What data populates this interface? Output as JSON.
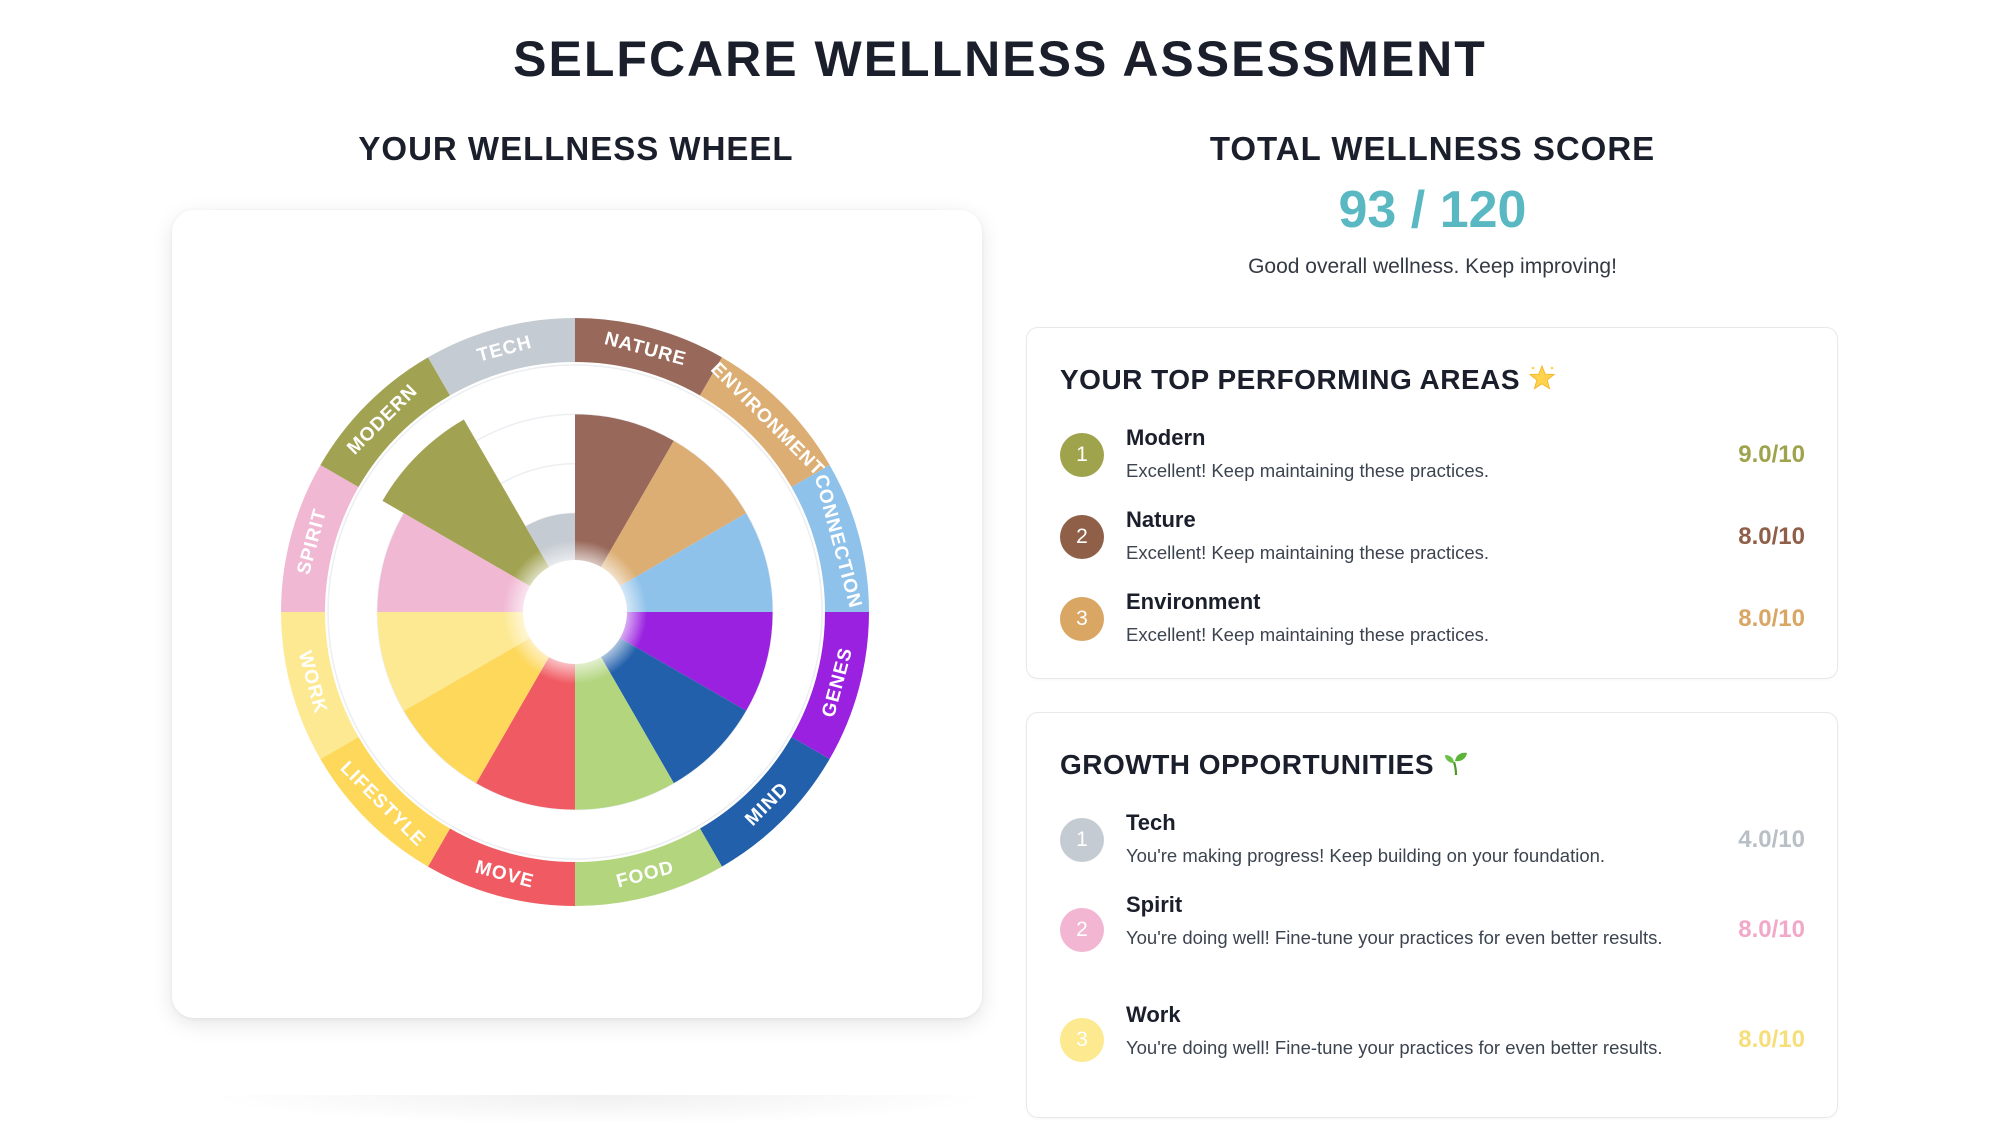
{
  "page": {
    "title": "SELFCARE WELLNESS ASSESSMENT"
  },
  "wheel": {
    "title": "YOUR WELLNESS WHEEL"
  },
  "total": {
    "title": "TOTAL WELLNESS SCORE",
    "score": "93 / 120",
    "message": "Good overall wellness. Keep improving!"
  },
  "top": {
    "heading": "YOUR TOP PERFORMING AREAS",
    "icon": "star-icon",
    "items": [
      {
        "rank": "1",
        "name": "Modern",
        "desc": "Excellent! Keep maintaining these practices.",
        "score": "9.0/10",
        "color": "#9ea34c"
      },
      {
        "rank": "2",
        "name": "Nature",
        "desc": "Excellent! Keep maintaining these practices.",
        "score": "8.0/10",
        "color": "#8f5f48"
      },
      {
        "rank": "3",
        "name": "Environment",
        "desc": "Excellent! Keep maintaining these practices.",
        "score": "8.0/10",
        "color": "#d9a664"
      }
    ]
  },
  "growth": {
    "heading": "GROWTH OPPORTUNITIES",
    "icon": "seedling-icon",
    "items": [
      {
        "rank": "1",
        "name": "Tech",
        "desc": "You're making progress! Keep building on your foundation.",
        "score": "4.0/10",
        "color": "#c5cbd2",
        "textColor": "#b9bfc6"
      },
      {
        "rank": "2",
        "name": "Spirit",
        "desc": "You're doing well! Fine-tune your practices for even better results.",
        "score": "8.0/10",
        "color": "#f2b6d2",
        "textColor": "#f0a9c9"
      },
      {
        "rank": "3",
        "name": "Work",
        "desc": "You're doing well! Fine-tune your practices for even better results.",
        "score": "8.0/10",
        "color": "#fde98f",
        "textColor": "#f6de7a"
      }
    ]
  },
  "chart_data": {
    "type": "pie",
    "variant": "polar-area",
    "max": 10,
    "categories": [
      "NATURE",
      "ENVIRONMENT",
      "CONNECTION",
      "GENES",
      "MIND",
      "FOOD",
      "MOVE",
      "LIFESTYLE",
      "WORK",
      "SPIRIT",
      "MODERN",
      "TECH"
    ],
    "values": [
      8,
      8,
      8,
      8,
      8,
      8,
      8,
      8,
      8,
      8,
      9,
      4
    ],
    "colors": [
      "#98695a",
      "#dcae73",
      "#8fc2ea",
      "#9a21e0",
      "#2360ab",
      "#b2d57e",
      "#f05b63",
      "#fdd85b",
      "#fde992",
      "#f1b8d4",
      "#a2a352",
      "#c5cbd2"
    ],
    "ring_label_color": "#ffffff"
  }
}
